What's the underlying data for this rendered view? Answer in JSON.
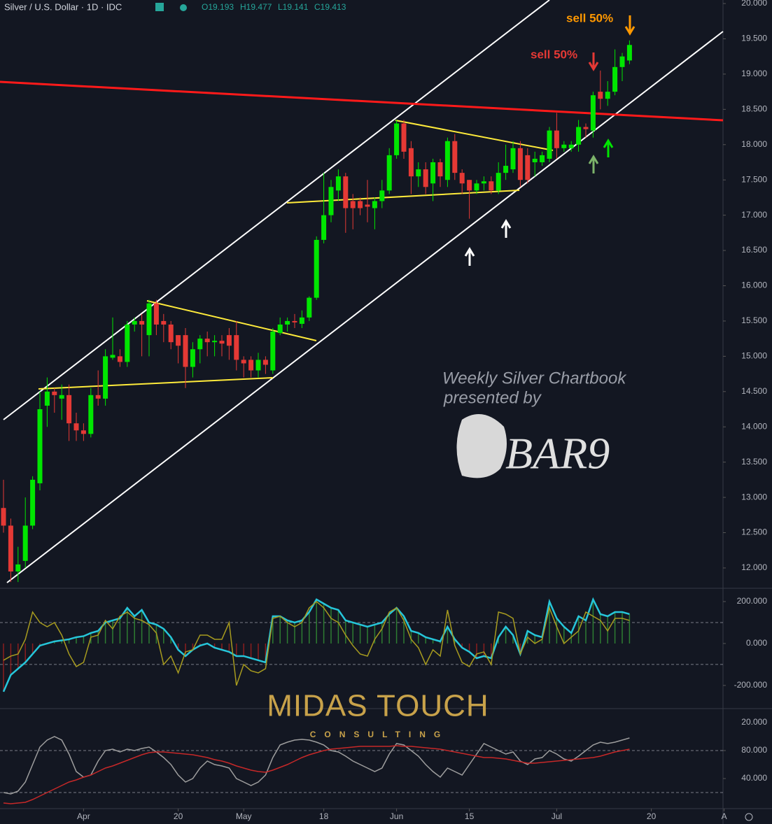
{
  "header": {
    "title": "Silver / U.S. Dollar · 1D · IDC",
    "open": "O19.193",
    "high": "H19.477",
    "low": "L19.141",
    "close": "C19.413"
  },
  "annotations": [
    "sell 50%",
    "sell 50%"
  ],
  "watermark": {
    "line1": "Weekly Silver Chartbook",
    "line2": "presented by",
    "brand": "BAR9",
    "logo": "MIDAS TOUCH",
    "logo_sub": "CONSULTING"
  },
  "extra_axis_labels": [
    "20.000"
  ],
  "chart_data": [
    {
      "type": "candlestick",
      "up_color": "#00e600",
      "down_color": "#e53935",
      "ylim": [
        11.712,
        20.05
      ],
      "yticks": [
        {
          "value": 12,
          "label": "12.000"
        },
        {
          "value": 12.5,
          "label": "12.500"
        },
        {
          "value": 13,
          "label": "13.000"
        },
        {
          "value": 13.5,
          "label": "13.500"
        },
        {
          "value": 14,
          "label": "14.000"
        },
        {
          "value": 14.5,
          "label": "14.500"
        },
        {
          "value": 15,
          "label": "15.000"
        },
        {
          "value": 15.5,
          "label": "15.500"
        },
        {
          "value": 16,
          "label": "16.000"
        },
        {
          "value": 16.5,
          "label": "16.500"
        },
        {
          "value": 17,
          "label": "17.000"
        },
        {
          "value": 17.5,
          "label": "17.500"
        },
        {
          "value": 18,
          "label": "18.000"
        },
        {
          "value": 18.5,
          "label": "18.500"
        },
        {
          "value": 19,
          "label": "19.000"
        },
        {
          "value": 19.5,
          "label": "19.500"
        },
        {
          "value": 20,
          "label": "20.000"
        }
      ],
      "xticks": [
        {
          "value": 11,
          "label": "Apr"
        },
        {
          "value": 24,
          "label": "20"
        },
        {
          "value": 33,
          "label": "May"
        },
        {
          "value": 44,
          "label": "18"
        },
        {
          "value": 54,
          "label": "Jun"
        },
        {
          "value": 64,
          "label": "15"
        },
        {
          "value": 76,
          "label": "Jul"
        },
        {
          "value": 89,
          "label": "20"
        },
        {
          "value": 99,
          "label": "A"
        }
      ],
      "open": [
        12.85,
        12.6,
        11.95,
        12.1,
        12.6,
        13.2,
        14.3,
        14.5,
        14.4,
        14.45,
        14.05,
        13.95,
        13.9,
        14.45,
        14.4,
        14.98,
        15.0,
        14.92,
        15.45,
        15.5,
        15.3,
        15.75,
        15.5,
        15.45,
        15.3,
        15.3,
        14.85,
        15.1,
        15.25,
        15.2,
        15.22,
        15.3,
        15.3,
        14.95,
        14.95,
        14.8,
        14.95,
        14.8,
        15.33,
        15.45,
        15.5,
        15.46,
        15.55,
        15.83,
        16.65,
        17.0,
        17.35,
        17.55,
        17.2,
        17.2,
        17.15,
        17.1,
        17.2,
        17.35,
        17.85,
        18.3,
        17.95,
        17.55,
        17.65,
        17.45,
        17.75,
        17.5,
        18.05,
        17.6,
        17.5,
        17.35,
        17.45,
        17.48,
        17.35,
        17.6,
        17.65,
        17.95,
        17.85,
        17.75,
        17.75,
        17.8,
        18.2,
        17.95,
        17.95,
        18.0,
        18.25,
        18.2,
        18.75,
        18.65,
        18.75,
        19.1,
        19.193
      ],
      "high": [
        13.25,
        12.7,
        12.3,
        13.0,
        13.3,
        14.5,
        14.7,
        14.55,
        14.6,
        14.6,
        14.2,
        14.05,
        14.55,
        14.8,
        15.1,
        15.55,
        15.1,
        15.5,
        15.55,
        15.6,
        15.8,
        15.8,
        15.6,
        15.5,
        15.3,
        15.4,
        15.2,
        15.3,
        15.35,
        15.3,
        15.3,
        15.4,
        15.5,
        15.0,
        15.0,
        15.05,
        15.0,
        15.4,
        15.55,
        15.55,
        15.6,
        15.65,
        15.85,
        16.7,
        17.6,
        17.5,
        17.65,
        17.6,
        17.3,
        17.25,
        17.5,
        17.25,
        17.5,
        17.95,
        18.35,
        18.35,
        18.05,
        17.75,
        17.75,
        17.8,
        17.8,
        18.1,
        18.15,
        17.65,
        17.5,
        17.5,
        17.55,
        17.55,
        17.75,
        18.0,
        18.05,
        18.05,
        17.95,
        17.9,
        17.9,
        18.25,
        18.45,
        18.05,
        18.05,
        18.35,
        18.3,
        18.75,
        19.05,
        18.9,
        19.35,
        19.3,
        19.477
      ],
      "low": [
        12.5,
        11.8,
        11.8,
        12.0,
        12.55,
        13.1,
        14.0,
        14.2,
        14.1,
        13.8,
        13.8,
        13.8,
        13.85,
        14.3,
        14.3,
        14.95,
        14.85,
        14.85,
        15.35,
        15.0,
        15.0,
        15.3,
        15.2,
        15.1,
        14.9,
        14.55,
        14.7,
        14.9,
        15.0,
        15.0,
        15.0,
        14.95,
        14.8,
        14.7,
        14.7,
        14.7,
        14.75,
        14.75,
        15.3,
        15.35,
        15.4,
        15.4,
        15.5,
        15.8,
        16.6,
        16.9,
        17.2,
        16.75,
        16.8,
        17.0,
        16.9,
        16.8,
        17.1,
        17.3,
        17.8,
        17.8,
        17.3,
        17.4,
        17.3,
        17.2,
        17.4,
        17.4,
        17.5,
        17.3,
        16.95,
        17.3,
        17.35,
        17.3,
        17.3,
        17.5,
        17.6,
        17.4,
        17.45,
        17.55,
        17.7,
        17.75,
        17.8,
        17.9,
        17.9,
        17.9,
        18.1,
        18.1,
        18.5,
        18.55,
        18.7,
        18.9,
        19.141
      ],
      "close": [
        12.6,
        11.95,
        12.05,
        12.6,
        13.25,
        14.25,
        14.5,
        14.45,
        14.45,
        14.05,
        13.95,
        13.9,
        14.45,
        14.4,
        15.0,
        15.02,
        14.92,
        15.45,
        15.5,
        15.45,
        15.75,
        15.45,
        15.45,
        15.2,
        15.15,
        14.85,
        15.1,
        15.25,
        15.2,
        15.22,
        15.18,
        15.15,
        14.95,
        14.9,
        14.8,
        14.95,
        14.88,
        15.35,
        15.45,
        15.5,
        15.48,
        15.55,
        15.83,
        16.65,
        17.0,
        17.4,
        17.55,
        17.1,
        17.1,
        17.1,
        17.12,
        17.2,
        17.35,
        17.85,
        18.3,
        17.9,
        17.55,
        17.65,
        17.4,
        17.75,
        17.55,
        18.05,
        17.6,
        17.45,
        17.35,
        17.45,
        17.48,
        17.35,
        17.6,
        17.7,
        17.95,
        17.5,
        17.5,
        17.8,
        17.85,
        18.2,
        17.95,
        18.0,
        18.0,
        18.25,
        18.22,
        18.7,
        18.65,
        18.75,
        19.1,
        19.25,
        19.413
      ]
    },
    {
      "type": "line",
      "ylim": [
        -307,
        260
      ],
      "yticks": [
        {
          "value": 200,
          "label": "200.000"
        },
        {
          "value": 0,
          "label": "0.000"
        },
        {
          "value": -200,
          "label": "-200.000"
        }
      ],
      "levels": [
        100,
        -100
      ],
      "hist_up_color": "#2e7d32",
      "hist_down_color": "#8b1e1e",
      "series": [
        {
          "color": "#26c6da",
          "histogram": true,
          "values": [
            -230,
            -150,
            -120,
            -90,
            -50,
            -10,
            0,
            10,
            15,
            20,
            30,
            35,
            50,
            60,
            100,
            110,
            120,
            170,
            130,
            160,
            100,
            90,
            70,
            30,
            -30,
            -60,
            -30,
            -10,
            0,
            -20,
            -30,
            -40,
            -60,
            -60,
            -70,
            -80,
            -90,
            130,
            130,
            110,
            100,
            110,
            150,
            210,
            190,
            170,
            160,
            110,
            100,
            90,
            80,
            90,
            100,
            140,
            170,
            130,
            60,
            50,
            30,
            20,
            10,
            80,
            20,
            -20,
            -40,
            -70,
            -60,
            -70,
            30,
            80,
            40,
            -50,
            60,
            40,
            30,
            200,
            120,
            80,
            50,
            130,
            110,
            210,
            140,
            130,
            150,
            150,
            140
          ]
        },
        {
          "color": "#a79b1f",
          "values": [
            -80,
            -60,
            -50,
            20,
            150,
            100,
            80,
            100,
            40,
            -50,
            -110,
            -90,
            30,
            40,
            110,
            70,
            130,
            150,
            120,
            110,
            90,
            50,
            -100,
            -60,
            -140,
            -40,
            -30,
            40,
            40,
            20,
            20,
            100,
            -200,
            -100,
            -130,
            -140,
            -120,
            120,
            130,
            100,
            80,
            100,
            170,
            200,
            170,
            120,
            100,
            40,
            -10,
            -50,
            -60,
            20,
            70,
            150,
            170,
            110,
            20,
            -20,
            -100,
            -30,
            -60,
            160,
            -10,
            -90,
            -110,
            -50,
            -40,
            -100,
            150,
            140,
            120,
            -50,
            30,
            0,
            20,
            170,
            80,
            0,
            30,
            60,
            150,
            130,
            110,
            60,
            120,
            120,
            110
          ]
        }
      ]
    },
    {
      "type": "line",
      "ylim": [
        -2,
        139
      ],
      "yticks": [
        {
          "value": 80,
          "label": "80.000"
        },
        {
          "value": 40,
          "label": "40.000"
        }
      ],
      "levels": [
        80,
        20
      ],
      "series": [
        {
          "color": "#9e9e9e",
          "values": [
            20,
            18,
            22,
            35,
            60,
            85,
            95,
            100,
            95,
            75,
            50,
            42,
            45,
            65,
            80,
            82,
            78,
            82,
            80,
            83,
            85,
            78,
            70,
            60,
            45,
            35,
            40,
            55,
            65,
            60,
            58,
            55,
            40,
            35,
            30,
            35,
            45,
            70,
            88,
            92,
            95,
            96,
            95,
            92,
            88,
            80,
            78,
            72,
            65,
            60,
            55,
            50,
            55,
            75,
            90,
            88,
            80,
            72,
            60,
            50,
            42,
            55,
            50,
            45,
            60,
            75,
            90,
            85,
            80,
            75,
            78,
            65,
            60,
            68,
            70,
            80,
            75,
            68,
            65,
            72,
            80,
            88,
            92,
            90,
            92,
            95,
            98
          ]
        },
        {
          "color": "#c62828",
          "values": [
            5,
            4,
            5,
            6,
            10,
            15,
            20,
            25,
            30,
            35,
            38,
            42,
            45,
            50,
            55,
            58,
            62,
            66,
            70,
            74,
            77,
            78,
            78,
            77,
            76,
            75,
            74,
            72,
            70,
            67,
            65,
            62,
            58,
            55,
            52,
            50,
            49,
            52,
            56,
            60,
            65,
            70,
            74,
            77,
            80,
            82,
            83,
            84,
            85,
            86,
            86,
            86,
            86,
            86,
            87,
            86,
            86,
            85,
            84,
            83,
            82,
            80,
            78,
            76,
            74,
            72,
            70,
            70,
            69,
            68,
            66,
            64,
            62,
            62,
            63,
            64,
            65,
            66,
            67,
            68,
            69,
            70,
            72,
            75,
            78,
            80,
            82
          ]
        }
      ]
    }
  ]
}
